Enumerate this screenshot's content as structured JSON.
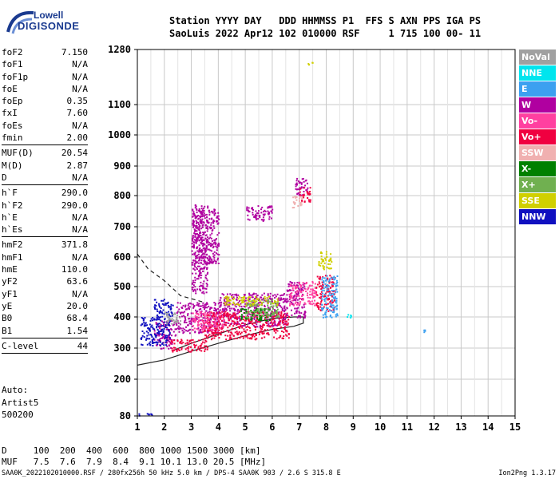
{
  "logo": {
    "line1": "Lowell",
    "line2": "DIGISONDE"
  },
  "header": {
    "line1": "Station YYYY DAY   DDD HHMMSS P1  FFS S AXN PPS IGA PS",
    "line2": "SaoLuis 2022 Apr12 102 010000 RSF     1 715 100 00- 11"
  },
  "params": [
    {
      "name": "foF2",
      "value": "7.150"
    },
    {
      "name": "foF1",
      "value": "N/A"
    },
    {
      "name": "foF1p",
      "value": "N/A"
    },
    {
      "name": "foE",
      "value": "N/A"
    },
    {
      "name": "foEp",
      "value": "0.35"
    },
    {
      "name": "fxI",
      "value": "7.60"
    },
    {
      "name": "foEs",
      "value": "N/A"
    },
    {
      "name": "fmin",
      "value": "2.00"
    },
    {
      "sep": true
    },
    {
      "name": "MUF(D)",
      "value": "20.54"
    },
    {
      "name": "M(D)",
      "value": "2.87"
    },
    {
      "name": "D",
      "value": "N/A"
    },
    {
      "sep": true
    },
    {
      "name": "h`F",
      "value": "290.0"
    },
    {
      "name": "h`F2",
      "value": "290.0"
    },
    {
      "name": "h`E",
      "value": "N/A"
    },
    {
      "name": "h`Es",
      "value": "N/A"
    },
    {
      "sep": true
    },
    {
      "name": "hmF2",
      "value": "371.8"
    },
    {
      "name": "hmF1",
      "value": "N/A"
    },
    {
      "name": "hmE",
      "value": "110.0"
    },
    {
      "name": "yF2",
      "value": "63.6"
    },
    {
      "name": "yF1",
      "value": "N/A"
    },
    {
      "name": "yE",
      "value": "20.0"
    },
    {
      "name": "B0",
      "value": "68.4"
    },
    {
      "name": "B1",
      "value": "1.54"
    },
    {
      "sep": true
    },
    {
      "name": "C-level",
      "value": "44"
    },
    {
      "sep": true
    }
  ],
  "auto_text": "Auto:\nArtist5\n500200",
  "legend": [
    {
      "label": "NoVal",
      "color": "#a0a0a0"
    },
    {
      "label": "NNE",
      "color": "#00e5ee"
    },
    {
      "label": "E",
      "color": "#3ca0f0"
    },
    {
      "label": "W",
      "color": "#b000a0"
    },
    {
      "label": "Vo-",
      "color": "#ff40a0"
    },
    {
      "label": "Vo+",
      "color": "#f00040"
    },
    {
      "label": "SSW",
      "color": "#f0b0b0"
    },
    {
      "label": "X-",
      "color": "#008000"
    },
    {
      "label": "X+",
      "color": "#70b050"
    },
    {
      "label": "SSE",
      "color": "#d0d000"
    },
    {
      "label": "NNW",
      "color": "#1010c0"
    }
  ],
  "dmuf": {
    "line1": "D     100  200  400  600  800 1000 1500 3000 [km]",
    "line2": "MUF   7.5  7.6  7.9  8.4  9.1 10.1 13.0 20.5 [MHz]"
  },
  "footer": "SAA0K_2022102010000.RSF / 280fx256h 50 kHz 5.0 km / DPS-4 SAA0K 903 / 2.6 S 315.8 E",
  "version": "Ion2Png 1.3.17",
  "chart_data": {
    "type": "scatter",
    "title": "",
    "xlabel": "",
    "ylabel": "",
    "xlim": [
      1,
      15
    ],
    "ylim": [
      80,
      1280
    ],
    "x_ticks": [
      1,
      2,
      3,
      4,
      5,
      6,
      7,
      8,
      9,
      10,
      11,
      12,
      13,
      14,
      15
    ],
    "y_ticks": [
      80,
      200,
      300,
      400,
      500,
      600,
      700,
      800,
      900,
      1000,
      1100,
      1280
    ],
    "y_scale": "nonlinear (ionogram virtual height)",
    "grid": true,
    "series": [
      {
        "name": "W",
        "color": "#b000a0",
        "regions": [
          {
            "x": [
              1.6,
              2.4
            ],
            "y": [
              300,
              390
            ]
          },
          {
            "x": [
              2.4,
              4.0
            ],
            "y": [
              350,
              450
            ]
          },
          {
            "x": [
              3.0,
              3.6
            ],
            "y": [
              480,
              780
            ]
          },
          {
            "x": [
              3.0,
              4.0
            ],
            "y": [
              580,
              760
            ]
          },
          {
            "x": [
              4.0,
              6.5
            ],
            "y": [
              370,
              480
            ]
          },
          {
            "x": [
              5.0,
              6.0
            ],
            "y": [
              720,
              770
            ]
          },
          {
            "x": [
              6.5,
              7.2
            ],
            "y": [
              400,
              520
            ]
          },
          {
            "x": [
              6.8,
              7.3
            ],
            "y": [
              800,
              860
            ]
          }
        ]
      },
      {
        "name": "Vo+",
        "color": "#f00040",
        "regions": [
          {
            "x": [
              2.2,
              3.6
            ],
            "y": [
              290,
              330
            ]
          },
          {
            "x": [
              3.4,
              6.6
            ],
            "y": [
              330,
              420
            ]
          },
          {
            "x": [
              7.6,
              8.3
            ],
            "y": [
              420,
              540
            ]
          },
          {
            "x": [
              7.0,
              7.4
            ],
            "y": [
              780,
              830
            ]
          }
        ]
      },
      {
        "name": "Vo-",
        "color": "#ff40a0",
        "regions": [
          {
            "x": [
              3.0,
              4.2
            ],
            "y": [
              360,
              420
            ]
          },
          {
            "x": [
              6.6,
              7.6
            ],
            "y": [
              440,
              520
            ]
          }
        ]
      },
      {
        "name": "NNW",
        "color": "#1010c0",
        "regions": [
          {
            "x": [
              1.0,
              1.8
            ],
            "y": [
              82,
              90
            ]
          },
          {
            "x": [
              1.1,
              2.2
            ],
            "y": [
              310,
              400
            ]
          },
          {
            "x": [
              1.6,
              2.3
            ],
            "y": [
              400,
              460
            ]
          }
        ]
      },
      {
        "name": "X-",
        "color": "#008000",
        "regions": [
          {
            "x": [
              4.8,
              6.0
            ],
            "y": [
              390,
              430
            ]
          }
        ]
      },
      {
        "name": "X+",
        "color": "#70b050",
        "regions": [
          {
            "x": [
              5.0,
              6.2
            ],
            "y": [
              400,
              460
            ]
          }
        ]
      },
      {
        "name": "SSE",
        "color": "#d0d000",
        "regions": [
          {
            "x": [
              4.2,
              6.2
            ],
            "y": [
              440,
              470
            ]
          },
          {
            "x": [
              7.7,
              8.2
            ],
            "y": [
              560,
              620
            ]
          },
          {
            "x": [
              7.2,
              7.5
            ],
            "y": [
              1230,
              1240
            ]
          }
        ]
      },
      {
        "name": "SSW",
        "color": "#f0b0b0",
        "regions": [
          {
            "x": [
              6.7,
              7.1
            ],
            "y": [
              760,
              800
            ]
          }
        ]
      },
      {
        "name": "E",
        "color": "#3ca0f0",
        "regions": [
          {
            "x": [
              7.8,
              8.4
            ],
            "y": [
              400,
              540
            ]
          },
          {
            "x": [
              11.6,
              11.8
            ],
            "y": [
              350,
              360
            ]
          }
        ]
      },
      {
        "name": "NNE",
        "color": "#00e5ee",
        "regions": [
          {
            "x": [
              8.5,
              8.9
            ],
            "y": [
              400,
              410
            ]
          }
        ]
      },
      {
        "name": "NoVal",
        "color": "#a0a0a0",
        "regions": [
          {
            "x": [
              2.0,
              2.6
            ],
            "y": [
              380,
              420
            ]
          }
        ]
      }
    ],
    "profile_curves": [
      {
        "style": "solid",
        "x": [
          1,
          2,
          3,
          4,
          5,
          6,
          6.8,
          7.15,
          7.15,
          6.8,
          6.0,
          5.0,
          4.0,
          3.0,
          2.4
        ],
        "y": [
          245,
          262,
          290,
          315,
          340,
          360,
          370,
          380,
          400,
          400,
          395,
          375,
          345,
          315,
          295
        ]
      },
      {
        "style": "dashed",
        "x": [
          1.0,
          1.4,
          2.0,
          2.6,
          3.0,
          3.4
        ],
        "y": [
          610,
          560,
          520,
          470,
          460,
          450
        ]
      }
    ]
  }
}
